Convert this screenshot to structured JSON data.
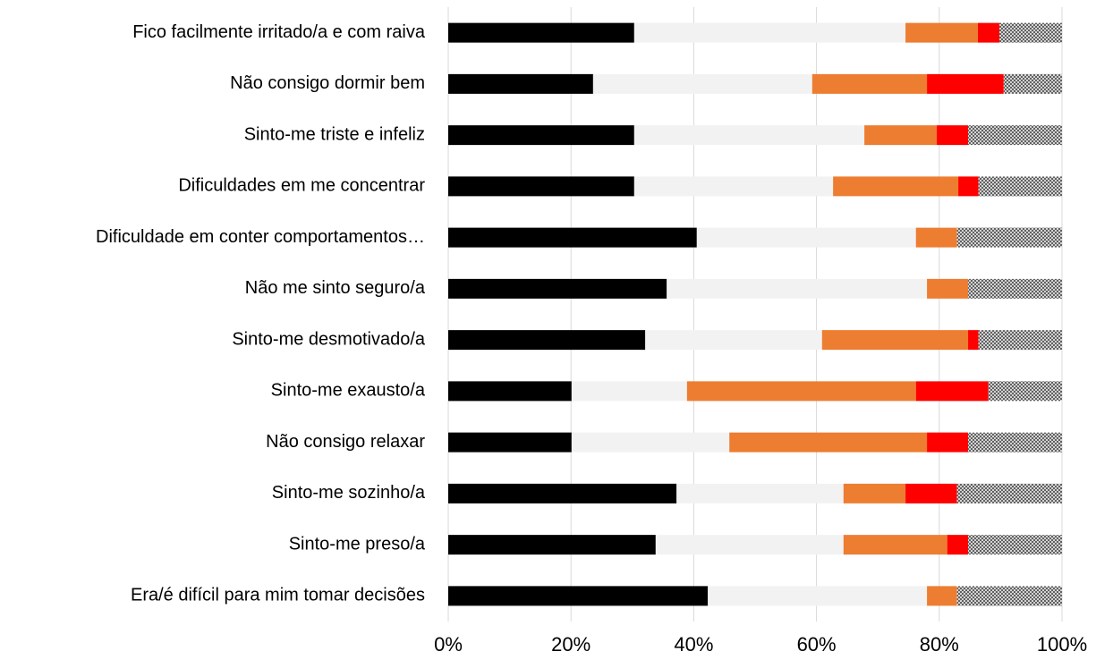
{
  "chart_data": {
    "type": "stacked-bar-horizontal",
    "categories": [
      "Fico facilmente irritado/a e com raiva",
      "Não consigo dormir bem",
      "Sinto-me triste e infeliz",
      "Dificuldades em me concentrar",
      "Dificuldade em conter comportamentos…",
      "Não me sinto seguro/a",
      "Sinto-me desmotivado/a",
      "Sinto-me exausto/a",
      "Não consigo relaxar",
      "Sinto-me sozinho/a",
      "Sinto-me preso/a",
      "Era/é difícil para mim tomar decisões"
    ],
    "series": [
      {
        "color": "#000000",
        "values": [
          30.3,
          23.6,
          30.3,
          30.3,
          40.5,
          35.6,
          32.1,
          20.1,
          20.1,
          37.2,
          33.8,
          42.3
        ]
      },
      {
        "color": "#f2f2f2",
        "values": [
          44.2,
          35.7,
          37.5,
          32.4,
          35.7,
          42.4,
          28.8,
          18.8,
          25.7,
          27.2,
          30.6,
          35.7
        ]
      },
      {
        "color": "#ed7d31",
        "values": [
          11.8,
          18.7,
          11.8,
          20.4,
          6.7,
          6.7,
          23.8,
          37.3,
          32.2,
          10.1,
          16.9,
          4.9
        ]
      },
      {
        "color": "#ff0000",
        "values": [
          3.5,
          12.5,
          5.1,
          3.3,
          0,
          0,
          1.7,
          11.8,
          6.7,
          8.4,
          3.4,
          0
        ]
      },
      {
        "color": "#555555",
        "pattern": "crosshatch",
        "values": [
          10.2,
          9.5,
          15.3,
          13.6,
          17.1,
          15.3,
          13.6,
          12.0,
          15.3,
          17.1,
          15.3,
          17.1
        ]
      }
    ],
    "xlim": [
      0,
      100
    ],
    "xticks": [
      {
        "value": 0,
        "label": "0%"
      },
      {
        "value": 20,
        "label": "20%"
      },
      {
        "value": 40,
        "label": "40%"
      },
      {
        "value": 60,
        "label": "60%"
      },
      {
        "value": 80,
        "label": "80%"
      },
      {
        "value": 100,
        "label": "100%"
      }
    ],
    "grid": true
  }
}
